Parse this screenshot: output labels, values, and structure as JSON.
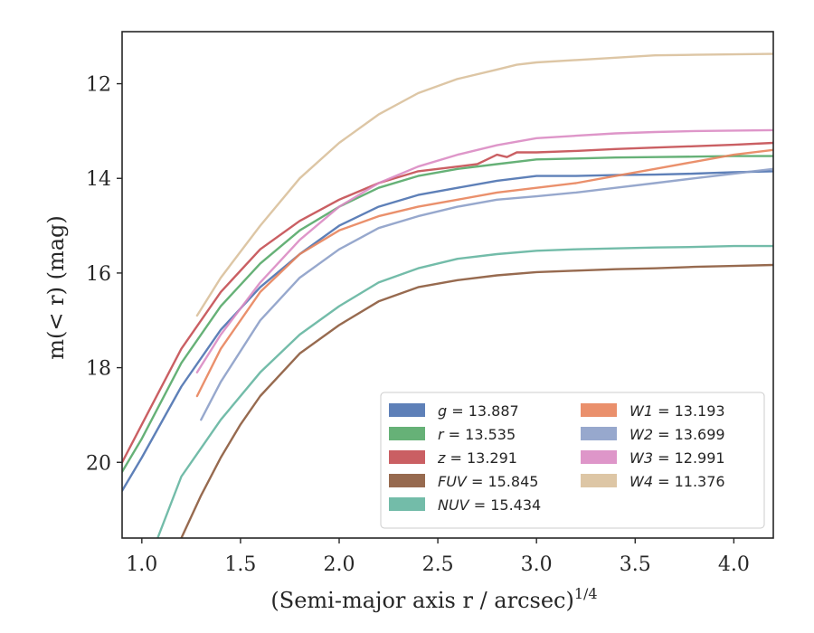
{
  "chart_data": {
    "type": "line",
    "title": "",
    "xlabel": "(Semi-major axis r / arcsec)",
    "xlabel_sup": "1/4",
    "ylabel": "m(< r) (mag)",
    "xlim": [
      0.9,
      4.2
    ],
    "ylim": [
      21.6,
      10.9
    ],
    "y_inverted": true,
    "grid": false,
    "legend_position": "lower-right",
    "x_ticks": [
      1.0,
      1.5,
      2.0,
      2.5,
      3.0,
      3.5,
      4.0
    ],
    "y_ticks": [
      12,
      14,
      16,
      18,
      20
    ],
    "series": [
      {
        "name": "g",
        "legend_value": "13.887",
        "color": "#4c72b0",
        "x": [
          0.9,
          1.0,
          1.2,
          1.4,
          1.6,
          1.8,
          2.0,
          2.2,
          2.4,
          2.6,
          2.8,
          3.0,
          3.2,
          3.4,
          3.6,
          3.8,
          4.0,
          4.2
        ],
        "y": [
          20.6,
          19.9,
          18.4,
          17.2,
          16.3,
          15.6,
          15.0,
          14.6,
          14.35,
          14.2,
          14.05,
          13.95,
          13.95,
          13.93,
          13.92,
          13.9,
          13.87,
          13.85
        ]
      },
      {
        "name": "r",
        "legend_value": "13.535",
        "color": "#55a868",
        "x": [
          0.9,
          1.0,
          1.2,
          1.4,
          1.6,
          1.8,
          2.0,
          2.2,
          2.4,
          2.6,
          2.8,
          3.0,
          3.2,
          3.4,
          3.6,
          3.8,
          4.0,
          4.2
        ],
        "y": [
          20.2,
          19.5,
          17.9,
          16.7,
          15.8,
          15.1,
          14.6,
          14.2,
          13.95,
          13.8,
          13.7,
          13.6,
          13.58,
          13.56,
          13.55,
          13.54,
          13.53,
          13.53
        ]
      },
      {
        "name": "z",
        "legend_value": "13.291",
        "color": "#c44e52",
        "x": [
          0.9,
          1.0,
          1.2,
          1.4,
          1.6,
          1.8,
          2.0,
          2.2,
          2.4,
          2.6,
          2.7,
          2.75,
          2.8,
          2.85,
          2.9,
          3.0,
          3.2,
          3.4,
          3.6,
          3.8,
          4.0,
          4.2
        ],
        "y": [
          20.0,
          19.2,
          17.6,
          16.4,
          15.5,
          14.9,
          14.45,
          14.1,
          13.85,
          13.75,
          13.7,
          13.6,
          13.5,
          13.55,
          13.45,
          13.45,
          13.42,
          13.38,
          13.35,
          13.32,
          13.29,
          13.25
        ]
      },
      {
        "name": "FUV",
        "legend_value": "15.845",
        "color": "#8c5a3c",
        "x": [
          1.2,
          1.3,
          1.4,
          1.5,
          1.6,
          1.8,
          2.0,
          2.2,
          2.4,
          2.6,
          2.8,
          3.0,
          3.2,
          3.4,
          3.6,
          3.8,
          4.0,
          4.2
        ],
        "y": [
          21.6,
          20.7,
          19.9,
          19.2,
          18.6,
          17.7,
          17.1,
          16.6,
          16.3,
          16.15,
          16.05,
          15.98,
          15.95,
          15.92,
          15.9,
          15.87,
          15.85,
          15.83
        ]
      },
      {
        "name": "NUV",
        "legend_value": "15.434",
        "color": "#64b5a0",
        "x": [
          1.08,
          1.2,
          1.4,
          1.6,
          1.8,
          2.0,
          2.2,
          2.4,
          2.6,
          2.8,
          3.0,
          3.2,
          3.4,
          3.6,
          3.8,
          4.0,
          4.2
        ],
        "y": [
          21.6,
          20.3,
          19.1,
          18.1,
          17.3,
          16.7,
          16.2,
          15.9,
          15.7,
          15.6,
          15.53,
          15.5,
          15.48,
          15.46,
          15.45,
          15.43,
          15.43
        ]
      },
      {
        "name": "W1",
        "legend_value": "13.193",
        "color": "#e8845c",
        "x": [
          1.28,
          1.4,
          1.6,
          1.8,
          2.0,
          2.2,
          2.4,
          2.6,
          2.8,
          3.0,
          3.2,
          3.4,
          3.6,
          3.8,
          4.0,
          4.2
        ],
        "y": [
          18.6,
          17.6,
          16.4,
          15.6,
          15.1,
          14.8,
          14.6,
          14.45,
          14.3,
          14.2,
          14.1,
          13.95,
          13.8,
          13.65,
          13.5,
          13.4
        ]
      },
      {
        "name": "W2",
        "legend_value": "13.699",
        "color": "#8c9ec8",
        "x": [
          1.3,
          1.4,
          1.6,
          1.8,
          2.0,
          2.2,
          2.4,
          2.6,
          2.8,
          3.0,
          3.2,
          3.4,
          3.6,
          3.8,
          4.0,
          4.2
        ],
        "y": [
          19.1,
          18.3,
          17.0,
          16.1,
          15.5,
          15.05,
          14.8,
          14.6,
          14.45,
          14.38,
          14.3,
          14.2,
          14.1,
          14.0,
          13.9,
          13.8
        ]
      },
      {
        "name": "W3",
        "legend_value": "12.991",
        "color": "#da8bc3",
        "x": [
          1.28,
          1.4,
          1.6,
          1.8,
          2.0,
          2.2,
          2.4,
          2.6,
          2.8,
          3.0,
          3.2,
          3.4,
          3.6,
          3.8,
          4.0,
          4.2
        ],
        "y": [
          18.1,
          17.3,
          16.2,
          15.3,
          14.6,
          14.1,
          13.75,
          13.5,
          13.3,
          13.15,
          13.1,
          13.05,
          13.02,
          13.0,
          12.99,
          12.98
        ]
      },
      {
        "name": "W4",
        "legend_value": "11.376",
        "color": "#d9c09b",
        "x": [
          1.28,
          1.4,
          1.6,
          1.8,
          2.0,
          2.2,
          2.4,
          2.6,
          2.8,
          2.9,
          3.0,
          3.2,
          3.4,
          3.6,
          3.8,
          4.0,
          4.2
        ],
        "y": [
          16.9,
          16.1,
          15.0,
          14.0,
          13.25,
          12.65,
          12.2,
          11.9,
          11.7,
          11.6,
          11.55,
          11.5,
          11.45,
          11.4,
          11.39,
          11.38,
          11.37
        ]
      }
    ]
  }
}
